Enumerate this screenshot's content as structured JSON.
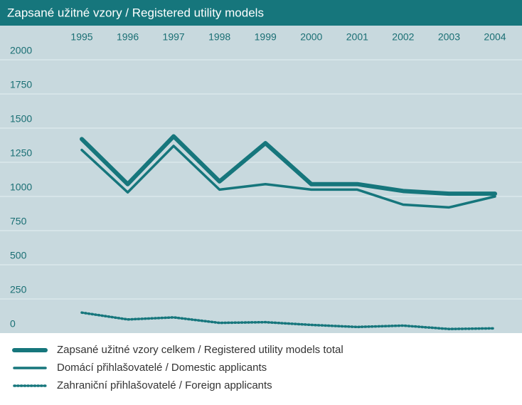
{
  "chart_data": {
    "type": "line",
    "title": "Zapsané užitné vzory / Registered utility models",
    "categories": [
      "1995",
      "1996",
      "1997",
      "1998",
      "1999",
      "2000",
      "2001",
      "2002",
      "2003",
      "2004"
    ],
    "series": [
      {
        "name": "Zapsané užitné vzory  celkem / Registered utility models total",
        "color": "#16767c",
        "style": "thick",
        "values": [
          1420,
          1090,
          1440,
          1110,
          1390,
          1090,
          1090,
          1040,
          1020,
          1020
        ]
      },
      {
        "name": "Domácí přihlašovatelé / Domestic applicants",
        "color": "#16767c",
        "style": "medium",
        "values": [
          1340,
          1030,
          1370,
          1050,
          1090,
          1050,
          1050,
          940,
          920,
          1000
        ]
      },
      {
        "name": "Zahraniční přihlašovatelé / Foreign applicants",
        "color": "#16767c",
        "style": "dotted",
        "values": [
          150,
          100,
          115,
          75,
          80,
          60,
          45,
          55,
          30,
          35
        ]
      }
    ],
    "ylim": [
      0,
      2000
    ],
    "yticks": [
      0,
      250,
      500,
      750,
      1000,
      1250,
      1500,
      1750,
      2000
    ],
    "grid": true
  }
}
